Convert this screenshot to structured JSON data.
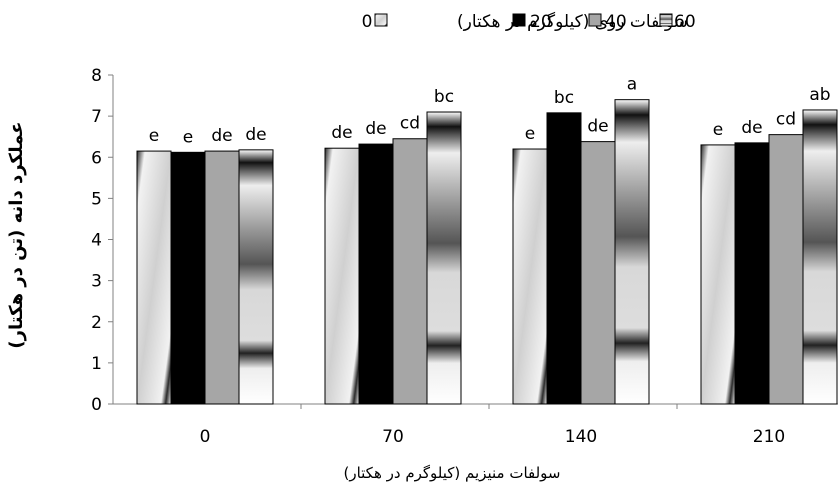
{
  "chart_data": {
    "type": "bar",
    "title": "",
    "xlabel": "سولفات منیزیم (کیلوگرم در هکتار)",
    "ylabel": "عملکرد دانه (تن در هکتار)",
    "ylim": [
      0,
      8
    ],
    "yticks": [
      "0",
      "1",
      "2",
      "3",
      "4",
      "5",
      "6",
      "7",
      "8"
    ],
    "categories": [
      "0",
      "70",
      "140",
      "210"
    ],
    "legend_title": "سولفات روی (کیلوگرم در هکتار)",
    "legend_position": "top",
    "grid": false,
    "series": [
      {
        "name": "0",
        "color": "#ffffff",
        "values": [
          6.15,
          6.22,
          6.2,
          6.3
        ],
        "letters": [
          "e",
          "de",
          "e",
          "e"
        ]
      },
      {
        "name": "20",
        "color": "#000000",
        "values": [
          6.12,
          6.32,
          7.08,
          6.35
        ],
        "letters": [
          "e",
          "de",
          "bc",
          "de"
        ]
      },
      {
        "name": "40",
        "color": "#a6a6a6",
        "values": [
          6.15,
          6.45,
          6.38,
          6.55
        ],
        "letters": [
          "de",
          "cd",
          "de",
          "cd"
        ]
      },
      {
        "name": "60",
        "color": "#ffffff",
        "values": [
          6.18,
          7.1,
          7.4,
          7.15
        ],
        "letters": [
          "de",
          "bc",
          "a",
          "ab"
        ]
      }
    ]
  }
}
